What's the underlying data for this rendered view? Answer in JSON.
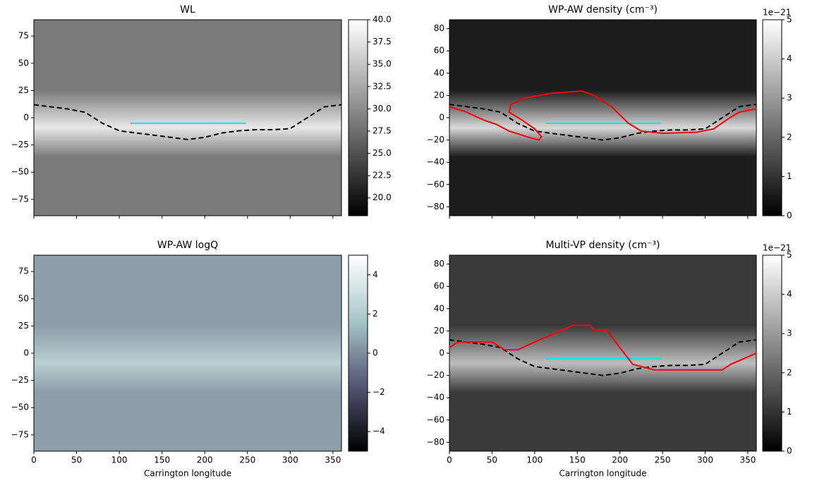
{
  "chart_data": [
    {
      "type": "heatmap",
      "title": "WL",
      "cmap": [
        "#000000",
        "#ffffff"
      ],
      "background": "#7a7a7a",
      "band": "#e8e8e8",
      "xlim": [
        0,
        360
      ],
      "xticks": [
        0,
        50,
        100,
        150,
        200,
        250,
        300,
        350
      ],
      "show_xticklabels": false,
      "ylim": [
        -90,
        90
      ],
      "yticks": [
        {
          "value": -75,
          "label": "−75"
        },
        {
          "value": -50,
          "label": "−50"
        },
        {
          "value": -25,
          "label": "−25"
        },
        0,
        25,
        50,
        75
      ],
      "clim": [
        18,
        40
      ],
      "cticks": [
        {
          "value": 20,
          "label": "20.0"
        },
        {
          "value": 22.5,
          "label": "22.5"
        },
        {
          "value": 25,
          "label": "25.0"
        },
        {
          "value": 27.5,
          "label": "27.5"
        },
        {
          "value": 30,
          "label": "30.0"
        },
        {
          "value": 32.5,
          "label": "32.5"
        },
        {
          "value": 35,
          "label": "35.0"
        },
        {
          "value": 37.5,
          "label": "37.5"
        },
        {
          "value": 40,
          "label": "40.0"
        }
      ],
      "series": [
        {
          "color": "#000000",
          "style": "dashed",
          "x": [
            0,
            20,
            40,
            60,
            80,
            100,
            120,
            140,
            160,
            180,
            200,
            220,
            240,
            260,
            280,
            300,
            320,
            340,
            360
          ],
          "values": [
            12,
            10,
            8,
            5,
            -5,
            -12,
            -14,
            -16,
            -18,
            -20,
            -18,
            -14,
            -12,
            -11,
            -11,
            -10,
            0,
            10,
            12
          ]
        },
        {
          "color": "#00e5e5",
          "style": "solid",
          "x": [
            113,
            248
          ],
          "values": [
            -5,
            -5
          ]
        }
      ]
    },
    {
      "type": "heatmap",
      "title": "WP-AW density (cm⁻³)",
      "cmap": [
        "#000000",
        "#ffffff"
      ],
      "background": "#1c1c1c",
      "band": "#d8d8d8",
      "colorbar_offset": "1e−21",
      "xlim": [
        0,
        360
      ],
      "xticks": [
        0,
        50,
        100,
        150,
        200,
        250,
        300,
        350
      ],
      "show_xticklabels": false,
      "ylim": [
        -88,
        88
      ],
      "yticks": [
        {
          "value": -80,
          "label": "−80"
        },
        {
          "value": -60,
          "label": "−60"
        },
        {
          "value": -40,
          "label": "−40"
        },
        {
          "value": -20,
          "label": "−20"
        },
        0,
        20,
        40,
        60,
        80
      ],
      "clim": [
        0,
        5
      ],
      "cticks": [
        0,
        1,
        2,
        3,
        4,
        5
      ],
      "series": [
        {
          "color": "#000000",
          "style": "dashed",
          "x": [
            0,
            20,
            40,
            60,
            80,
            100,
            120,
            140,
            160,
            180,
            200,
            220,
            240,
            260,
            280,
            300,
            320,
            340,
            360
          ],
          "values": [
            12,
            10,
            8,
            5,
            -5,
            -12,
            -14,
            -16,
            -18,
            -20,
            -18,
            -14,
            -12,
            -11,
            -11,
            -10,
            0,
            10,
            12
          ]
        },
        {
          "color": "#00e5e5",
          "style": "solid",
          "x": [
            113,
            248
          ],
          "values": [
            -5,
            -5
          ]
        },
        {
          "color": "#ff0000",
          "style": "solid",
          "x": [
            0,
            20,
            40,
            55,
            70,
            95,
            105,
            108,
            100,
            85,
            70,
            72,
            90,
            120,
            155,
            170,
            190,
            210,
            225,
            250,
            290,
            310,
            325,
            340,
            360
          ],
          "values": [
            10,
            5,
            -2,
            -6,
            -12,
            -18,
            -20,
            -17,
            -10,
            -2,
            5,
            12,
            18,
            22,
            24,
            20,
            10,
            -5,
            -12,
            -14,
            -13,
            -10,
            -2,
            5,
            8
          ]
        }
      ]
    },
    {
      "type": "heatmap",
      "title": "WP-AW logQ",
      "cmap": [
        "#000000",
        "#545474",
        "#a7c7c7",
        "#ffffff"
      ],
      "background": "#8c9eaa",
      "band": "#b8d0d0",
      "xlim": [
        0,
        360
      ],
      "xticks": [
        0,
        50,
        100,
        150,
        200,
        250,
        300,
        350
      ],
      "show_xticklabels": true,
      "xlabel": "Carrington longitude",
      "ylim": [
        -90,
        90
      ],
      "yticks": [
        {
          "value": -75,
          "label": "−75"
        },
        {
          "value": -50,
          "label": "−50"
        },
        {
          "value": -25,
          "label": "−25"
        },
        0,
        25,
        50,
        75
      ],
      "clim": [
        -5,
        5
      ],
      "cticks": [
        {
          "value": -4,
          "label": "−4"
        },
        {
          "value": -2,
          "label": "−2"
        },
        0,
        2,
        4
      ],
      "series": []
    },
    {
      "type": "heatmap",
      "title": "Multi-VP density (cm⁻³)",
      "cmap": [
        "#000000",
        "#ffffff"
      ],
      "background": "#3a3a3a",
      "band": "#bdbdbd",
      "colorbar_offset": "1e−21",
      "xlim": [
        0,
        360
      ],
      "xticks": [
        0,
        50,
        100,
        150,
        200,
        250,
        300,
        350
      ],
      "show_xticklabels": true,
      "xlabel": "Carrington longitude",
      "ylim": [
        -88,
        88
      ],
      "yticks": [
        {
          "value": -80,
          "label": "−80"
        },
        {
          "value": -60,
          "label": "−60"
        },
        {
          "value": -40,
          "label": "−40"
        },
        {
          "value": -20,
          "label": "−20"
        },
        0,
        20,
        40,
        60,
        80
      ],
      "clim": [
        0,
        5
      ],
      "cticks": [
        0,
        1,
        2,
        3,
        4,
        5
      ],
      "series": [
        {
          "color": "#000000",
          "style": "dashed",
          "x": [
            0,
            20,
            40,
            60,
            80,
            100,
            120,
            140,
            160,
            180,
            200,
            220,
            240,
            260,
            280,
            300,
            320,
            340,
            360
          ],
          "values": [
            12,
            10,
            8,
            5,
            -5,
            -12,
            -14,
            -16,
            -18,
            -20,
            -18,
            -14,
            -12,
            -11,
            -11,
            -10,
            0,
            10,
            12
          ]
        },
        {
          "color": "#00e5e5",
          "style": "solid",
          "x": [
            113,
            248
          ],
          "values": [
            -5,
            -5
          ]
        },
        {
          "color": "#ff0000",
          "style": "solid",
          "x": [
            0,
            10,
            50,
            65,
            80,
            100,
            115,
            130,
            145,
            165,
            170,
            185,
            195,
            205,
            215,
            240,
            320,
            330,
            345,
            360
          ],
          "values": [
            5,
            10,
            10,
            3,
            3,
            10,
            15,
            20,
            25,
            25,
            20,
            20,
            10,
            0,
            -10,
            -15,
            -15,
            -10,
            -5,
            0
          ]
        }
      ]
    }
  ]
}
